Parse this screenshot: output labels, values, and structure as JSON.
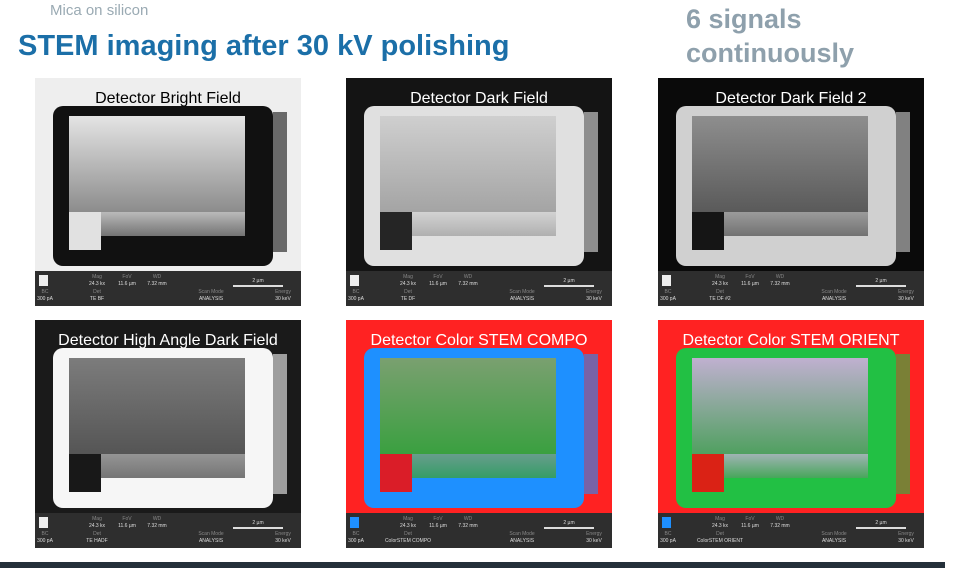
{
  "header": {
    "subtitle": "Mica on silicon",
    "title": "STEM imaging after 30 kV polishing",
    "side_note": [
      "6 signals",
      "continuously"
    ]
  },
  "info_labels": {
    "mag": "Mag",
    "fov": "FoV",
    "wd": "WD",
    "bc": "BC",
    "det": "Det",
    "scan_mode": "Scan Mode",
    "energy": "Energy"
  },
  "panels": [
    {
      "label": "Detector Bright Field",
      "info": {
        "mag": "24.3 kx",
        "fov": "11.6 µm",
        "wd": "7.32 mm",
        "scale": "2 µm",
        "bc": "300 pA",
        "det": "TE BF",
        "scan_mode": "ANALYSIS",
        "energy": "30 keV"
      }
    },
    {
      "label": "Detector Dark Field",
      "info": {
        "mag": "24.3 kx",
        "fov": "11.6 µm",
        "wd": "7.32 mm",
        "scale": "2 µm",
        "bc": "300 pA",
        "det": "TE DF",
        "scan_mode": "ANALYSIS",
        "energy": "30 keV"
      }
    },
    {
      "label": "Detector Dark Field 2",
      "info": {
        "mag": "24.3 kx",
        "fov": "11.6 µm",
        "wd": "7.32 mm",
        "scale": "2 µm",
        "bc": "300 pA",
        "det": "TE DF #2",
        "scan_mode": "ANALYSIS",
        "energy": "30 keV"
      }
    },
    {
      "label": "Detector High Angle Dark Field",
      "info": {
        "mag": "24.3 kx",
        "fov": "11.6 µm",
        "wd": "7.32 mm",
        "scale": "2 µm",
        "bc": "300 pA",
        "det": "TE HADF",
        "scan_mode": "ANALYSIS",
        "energy": "30 keV"
      }
    },
    {
      "label": "Detector Color STEM COMPO",
      "info": {
        "mag": "24.3 kx",
        "fov": "11.6 µm",
        "wd": "7.32 mm",
        "scale": "2 µm",
        "bc": "300 pA",
        "det": "ColorSTEM COMPO",
        "scan_mode": "ANALYSIS",
        "energy": "30 keV"
      }
    },
    {
      "label": "Detector Color STEM ORIENT",
      "info": {
        "mag": "24.3 kx",
        "fov": "11.6 µm",
        "wd": "7.32 mm",
        "scale": "2 µm",
        "bc": "300 pA",
        "det": "ColorSTEM ORIENT",
        "scan_mode": "ANALYSIS",
        "energy": "30 keV"
      }
    }
  ]
}
